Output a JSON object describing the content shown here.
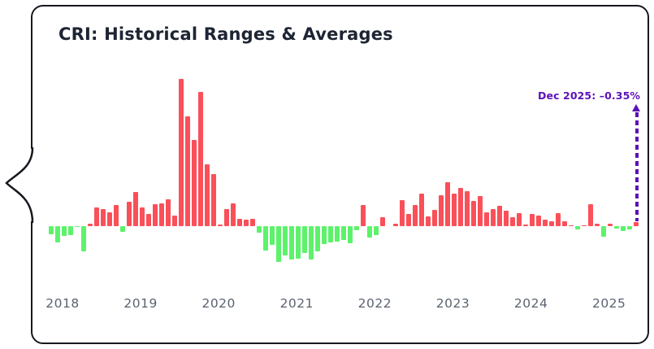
{
  "card": {
    "title": "CRI: Historical Ranges & Averages"
  },
  "chart_data": {
    "type": "bar",
    "title": "CRI: Historical Ranges & Averages",
    "xlabel": "",
    "ylabel": "",
    "x_tick_labels": [
      "2018",
      "2019",
      "2020",
      "2021",
      "2022",
      "2023",
      "2024",
      "2025"
    ],
    "frequency": "monthly",
    "start_month": "2018-01",
    "unit": "%",
    "values": [
      -0.7,
      -1.4,
      -0.85,
      -0.75,
      -0.05,
      -2.15,
      0.2,
      1.6,
      1.45,
      1.2,
      1.8,
      -0.5,
      2.1,
      2.95,
      1.6,
      1.05,
      1.9,
      1.95,
      2.3,
      0.9,
      12.65,
      9.45,
      7.4,
      11.55,
      5.3,
      4.5,
      0.15,
      1.45,
      1.95,
      0.65,
      0.55,
      0.65,
      -0.55,
      -2.1,
      -1.6,
      -3.1,
      -2.5,
      -2.85,
      -2.8,
      -2.3,
      -2.85,
      -2.15,
      -1.55,
      -1.4,
      -1.35,
      -1.2,
      -1.45,
      -0.35,
      1.8,
      -1.0,
      -0.75,
      0.75,
      0.0,
      0.2,
      2.25,
      1.05,
      1.8,
      2.8,
      0.85,
      1.4,
      2.65,
      3.8,
      2.8,
      3.3,
      3.0,
      2.15,
      2.6,
      1.2,
      1.45,
      1.75,
      1.35,
      0.75,
      1.1,
      0.15,
      1.05,
      0.9,
      0.55,
      0.4,
      1.1,
      0.4,
      0.05,
      -0.3,
      0.05,
      1.9,
      0.2,
      -0.9,
      0.2,
      -0.2,
      -0.4,
      -0.3,
      0.35
    ],
    "positive_color": "#fa5059",
    "negative_color": "#5cf26b",
    "ylim": [
      -3.5,
      13
    ],
    "grid": false,
    "legend": false,
    "annotation": {
      "label": "Dec 2025: –0.35%",
      "month": "2025-12",
      "value": -0.35,
      "color": "#5b12b8"
    }
  }
}
